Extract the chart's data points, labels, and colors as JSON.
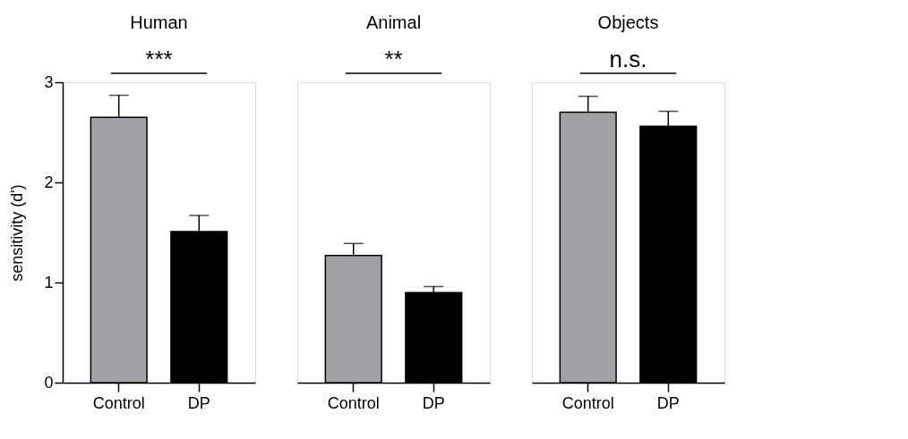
{
  "chart_data": [
    {
      "type": "bar",
      "title": "Human",
      "ylabel": "sensitivity (d')",
      "categories": [
        "Control",
        "DP"
      ],
      "values": [
        2.65,
        1.51
      ],
      "errors": [
        0.22,
        0.16
      ],
      "colors": [
        "#a2a1a6",
        "#000000"
      ],
      "ylim": [
        0,
        3
      ],
      "yticks": [
        0,
        1,
        2,
        3
      ],
      "annotations": [
        "***"
      ]
    },
    {
      "type": "bar",
      "title": "Animal",
      "categories": [
        "Control",
        "DP"
      ],
      "values": [
        1.27,
        0.9
      ],
      "errors": [
        0.12,
        0.06
      ],
      "colors": [
        "#a2a1a6",
        "#000000"
      ],
      "ylim": [
        0,
        3
      ],
      "yticks": [
        0,
        1,
        2,
        3
      ],
      "tick_labels": "x",
      "annotations": [
        "**"
      ]
    },
    {
      "type": "bar",
      "title": "Objects",
      "categories": [
        "Control",
        "DP"
      ],
      "values": [
        2.7,
        2.56
      ],
      "errors": [
        0.16,
        0.15
      ],
      "colors": [
        "#a2a1a6",
        "#000000"
      ],
      "ylim": [
        0,
        3
      ],
      "yticks": [
        0,
        1,
        2,
        3
      ],
      "tick_labels": "x",
      "annotations": [
        "n.s."
      ]
    }
  ]
}
